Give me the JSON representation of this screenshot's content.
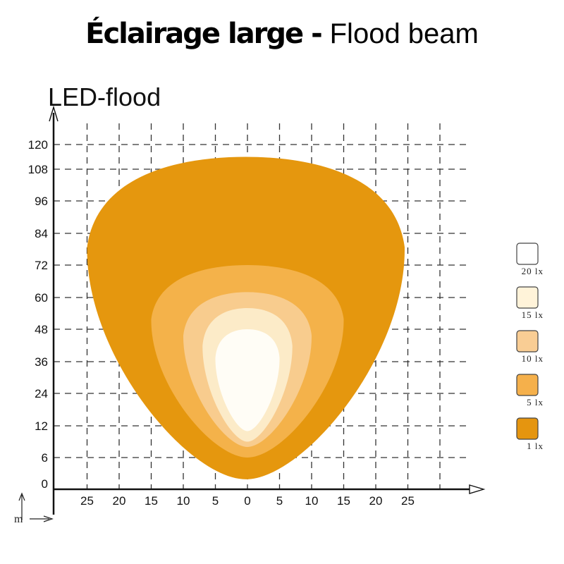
{
  "header": {
    "title_bold": "Éclairage large - ",
    "title_normal": "Flood beam"
  },
  "chart_data": {
    "type": "heatmap",
    "title": "LED-flood",
    "xlabel": "",
    "ylabel": "",
    "axis_unit_label": "m",
    "x_ticks": [
      25,
      20,
      15,
      10,
      5,
      0,
      5,
      10,
      15,
      20,
      25
    ],
    "x_values": [
      -25,
      -20,
      -15,
      -10,
      -5,
      0,
      5,
      10,
      15,
      20,
      25
    ],
    "y_ticks": [
      0,
      6,
      12,
      24,
      36,
      48,
      60,
      72,
      84,
      96,
      108,
      120
    ],
    "xlim": [
      -30,
      30
    ],
    "ylim": [
      0,
      120
    ],
    "grid": true,
    "legend_position": "right",
    "series": [
      {
        "name": "1 lx",
        "color": "#E5970E",
        "x_range": [
          -25,
          24.5
        ],
        "y_range": [
          1,
          114
        ]
      },
      {
        "name": "5 lx",
        "color": "#F4B24A",
        "x_range": [
          -15,
          15
        ],
        "y_range": [
          6,
          72
        ]
      },
      {
        "name": "10 lx",
        "color": "#F8CC8E",
        "x_range": [
          -10,
          10
        ],
        "y_range": [
          8,
          62
        ]
      },
      {
        "name": "15 lx",
        "color": "#FCEBC8",
        "x_range": [
          -7,
          7
        ],
        "y_range": [
          9,
          56
        ]
      },
      {
        "name": "20 lx",
        "color": "#FFFDF6",
        "x_range": [
          -5,
          5
        ],
        "y_range": [
          11,
          48
        ]
      }
    ],
    "legend": [
      {
        "label": "20 lx",
        "color": "#FFFFFF"
      },
      {
        "label": "15 lx",
        "color": "#FFF3D9"
      },
      {
        "label": "10 lx",
        "color": "#F9CD94"
      },
      {
        "label": "5 lx",
        "color": "#F5B04B"
      },
      {
        "label": "1 lx",
        "color": "#E5950F"
      }
    ]
  }
}
